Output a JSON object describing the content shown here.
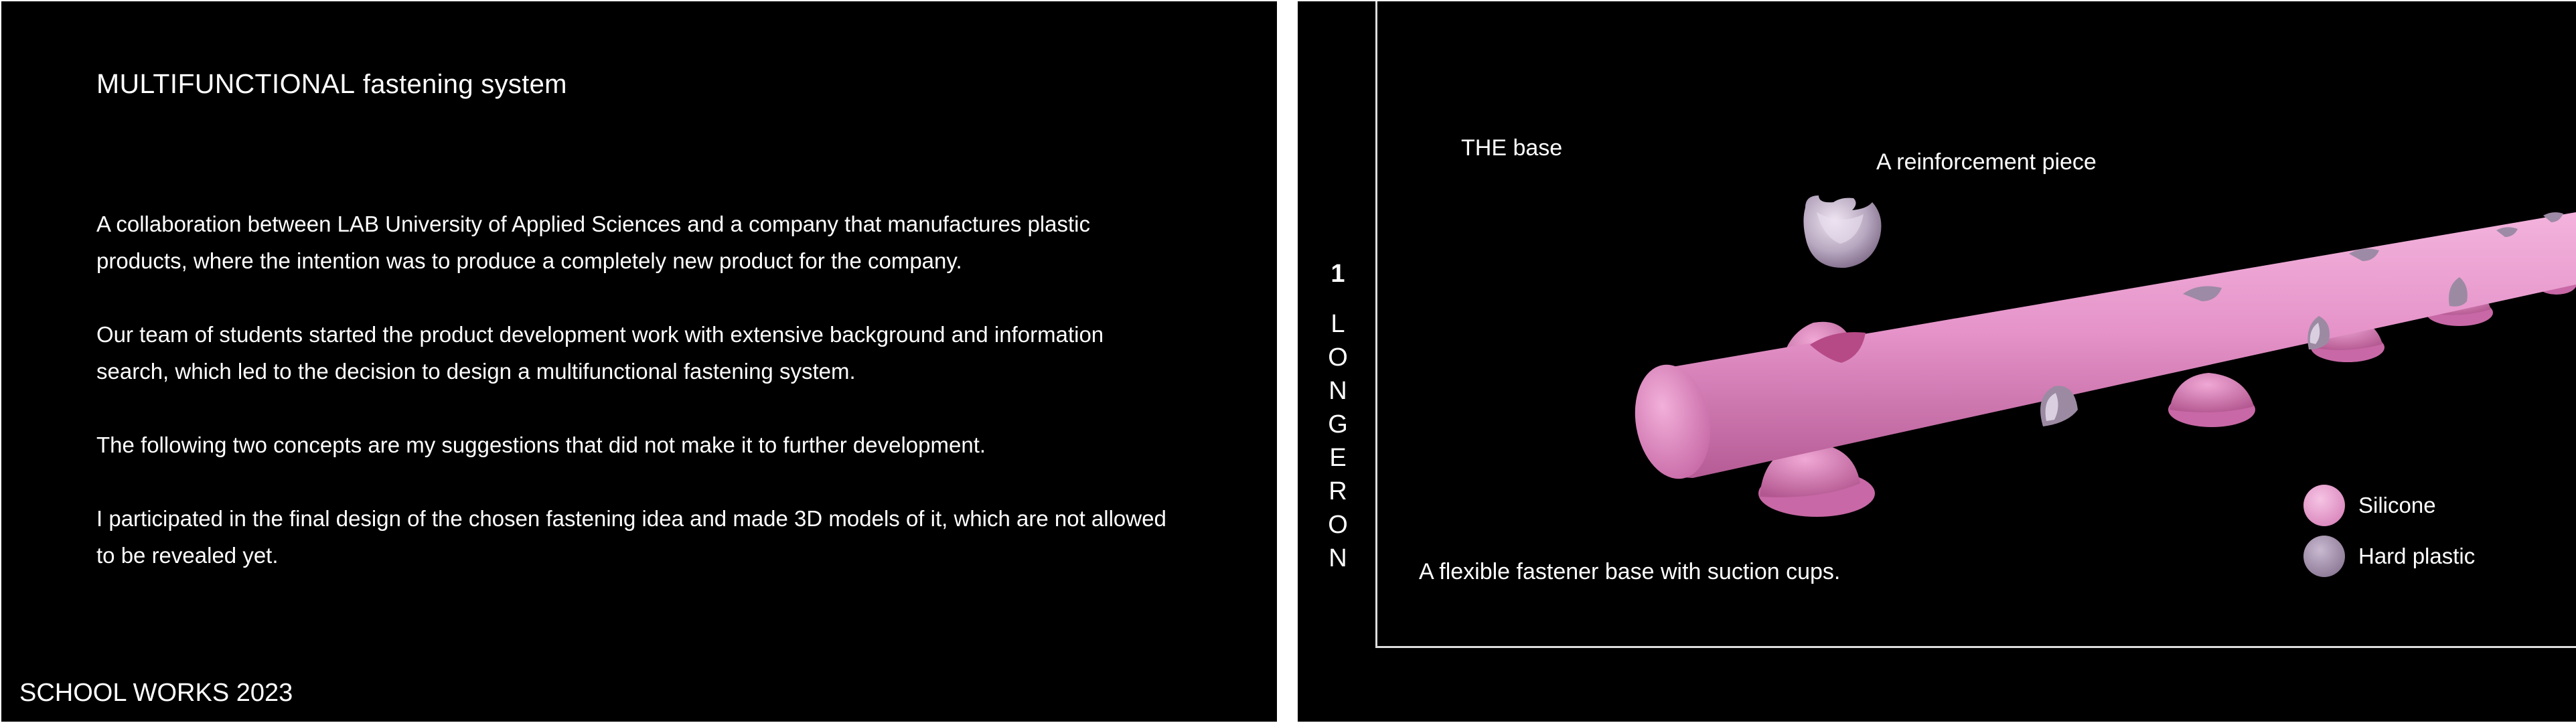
{
  "left": {
    "title_caps": "MULTIFUNCTIONAL",
    "title_rest": "fastening system",
    "paragraphs": [
      "A collaboration between LAB University of Applied Sciences and a company that manufactures plastic products, where the intention was to produce a completely new product for the company.",
      "Our team of students started the product development work with extensive background and information search, which led to the decision to design a multifunctional fastening system.",
      "The following  two concepts are my suggestions that did not make it to further development.",
      "I participated in the final design of the chosen fastening idea and made 3D models of it, which are not allowed to be revealed yet."
    ],
    "footer": "SCHOOL WORKS 2023"
  },
  "right": {
    "number": "1",
    "word_letters": [
      "L",
      "O",
      "N",
      "G",
      "E",
      "R",
      "O",
      "N"
    ],
    "label_base": "THE base",
    "label_reinforcement": "A reinforcement piece",
    "label_flexible": "A flexible fastener base with suction cups.",
    "legend": [
      {
        "label": "Silicone",
        "color": "#e79fcf"
      },
      {
        "label": "Hard plastic",
        "color": "#9d8aa6"
      }
    ]
  }
}
